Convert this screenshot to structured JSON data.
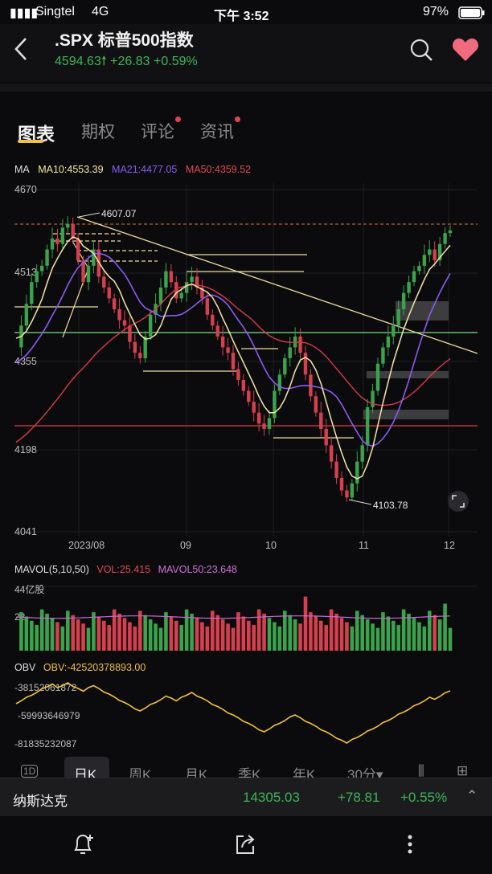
{
  "status_bar": {
    "carrier": "Singtel",
    "network": "4G",
    "time": "下午 3:52",
    "battery": "97%"
  },
  "header": {
    "title": ".SPX  标普500指数",
    "price": "4594.63",
    "change": "+26.83",
    "change_pct": "+0.59%",
    "icons": [
      "back-icon",
      "search-icon",
      "heart-icon"
    ]
  },
  "tabs": [
    {
      "label": "图表",
      "active": true,
      "dot": false
    },
    {
      "label": "期权",
      "active": false,
      "dot": false
    },
    {
      "label": "评论",
      "active": false,
      "dot": true
    },
    {
      "label": "资讯",
      "active": false,
      "dot": true
    }
  ],
  "ma_legend": {
    "label": "MA",
    "ma10": "MA10:4553.39",
    "ma21": "MA21:4477.05",
    "ma50": "MA50:4359.52"
  },
  "colors": {
    "up": "#3aa34c",
    "down": "#d6404e",
    "ma10": "#f4e8a6",
    "ma21": "#8a5cf0",
    "ma50": "#d9394a",
    "accent": "#f0c040"
  },
  "price_chart": {
    "y_ticks": [
      "4670",
      "4513",
      "4355",
      "4198",
      "4041"
    ],
    "x_ticks": [
      "2023/08",
      "09",
      "10",
      "11",
      "12"
    ],
    "annotations": {
      "high": "4607.07",
      "low": "4103.78"
    }
  },
  "vol_legend": {
    "label": "MAVOL(5,10,50)",
    "vol": "VOL:25.415",
    "mavol50": "MAVOL50:23.648"
  },
  "vol_axis": {
    "top": "44亿股",
    "mid": "22"
  },
  "obv_legend": {
    "label": "OBV",
    "obv": "OBV:-42520378893.00"
  },
  "obv_axis": [
    "-38152061872",
    "-59993646979",
    "-81835232087"
  ],
  "periods": [
    "1D",
    "日K",
    "周K",
    "月K",
    "季K",
    "年K",
    "30分"
  ],
  "active_period": "日K",
  "ticker": {
    "name": "纳斯达克",
    "price": "14305.03",
    "change": "+78.81",
    "change_pct": "+0.55%"
  },
  "chart_data": {
    "type": "candlestick",
    "title": ".SPX 标普500指数",
    "x_ticks": [
      "2023/08",
      "09",
      "10",
      "11",
      "12"
    ],
    "y_ticks": [
      4670,
      4513,
      4355,
      4198,
      4041
    ],
    "ylim": [
      4041,
      4670
    ],
    "price_path": [
      4380,
      4420,
      4460,
      4500,
      4520,
      4530,
      4560,
      4580,
      4570,
      4600,
      4607,
      4580,
      4540,
      4500,
      4530,
      4560,
      4510,
      4490,
      4470,
      4450,
      4430,
      4420,
      4390,
      4370,
      4360,
      4400,
      4440,
      4460,
      4490,
      4520,
      4500,
      4470,
      4480,
      4500,
      4510,
      4490,
      4470,
      4440,
      4420,
      4400,
      4380,
      4370,
      4340,
      4320,
      4300,
      4280,
      4260,
      4240,
      4230,
      4250,
      4300,
      4330,
      4360,
      4380,
      4400,
      4370,
      4330,
      4290,
      4260,
      4230,
      4200,
      4170,
      4140,
      4117,
      4104,
      4130,
      4170,
      4200,
      4270,
      4300,
      4350,
      4380,
      4400,
      4420,
      4450,
      4480,
      4500,
      4520,
      4530,
      4550,
      4560,
      4540,
      4570,
      4590,
      4595
    ],
    "annotations": {
      "high": 4607.07,
      "low": 4103.78
    },
    "current": 4594.63,
    "series": [
      {
        "name": "MA10",
        "last": 4553.39
      },
      {
        "name": "MA21",
        "last": 4477.05
      },
      {
        "name": "MA50",
        "last": 4359.52
      }
    ],
    "volume": {
      "ylim": [
        0,
        44
      ],
      "vol": 25.415,
      "mavol50": 23.648
    },
    "obv": {
      "value": -42520378893.0,
      "axis": [
        -38152061872,
        -59993646979,
        -81835232087
      ]
    }
  }
}
